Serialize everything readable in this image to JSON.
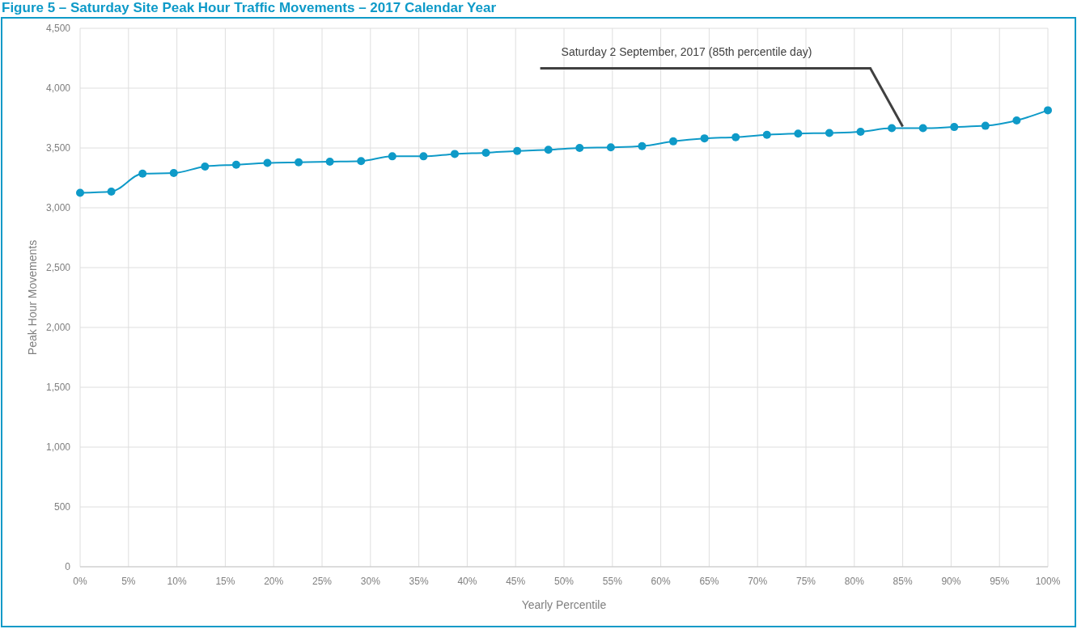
{
  "chart_data": {
    "type": "line",
    "title": "Figure 5 – Saturday Site Peak Hour Traffic Movements – 2017 Calendar Year",
    "xlabel": "Yearly Percentile",
    "ylabel": "Peak Hour Movements",
    "x": [
      0,
      3.226,
      6.452,
      9.677,
      12.903,
      16.129,
      19.355,
      22.581,
      25.806,
      29.032,
      32.258,
      35.484,
      38.71,
      41.935,
      45.161,
      48.387,
      51.613,
      54.839,
      58.065,
      61.29,
      64.516,
      67.742,
      70.968,
      74.194,
      77.419,
      80.645,
      83.871,
      87.097,
      90.323,
      93.548,
      96.774,
      100
    ],
    "series": [
      {
        "color": "#0e9ac8",
        "values": [
          3125,
          3135,
          3285,
          3290,
          3345,
          3360,
          3375,
          3380,
          3385,
          3390,
          3430,
          3430,
          3450,
          3460,
          3475,
          3485,
          3500,
          3505,
          3515,
          3555,
          3580,
          3590,
          3610,
          3620,
          3625,
          3635,
          3665,
          3665,
          3675,
          3685,
          3730,
          3815
        ]
      }
    ],
    "xlim": [
      0,
      100
    ],
    "xticks": [
      {
        "value": 0,
        "label": "0%"
      },
      {
        "value": 5,
        "label": "5%"
      },
      {
        "value": 10,
        "label": "10%"
      },
      {
        "value": 15,
        "label": "15%"
      },
      {
        "value": 20,
        "label": "20%"
      },
      {
        "value": 25,
        "label": "25%"
      },
      {
        "value": 30,
        "label": "30%"
      },
      {
        "value": 35,
        "label": "35%"
      },
      {
        "value": 40,
        "label": "40%"
      },
      {
        "value": 45,
        "label": "45%"
      },
      {
        "value": 50,
        "label": "50%"
      },
      {
        "value": 55,
        "label": "55%"
      },
      {
        "value": 60,
        "label": "60%"
      },
      {
        "value": 65,
        "label": "65%"
      },
      {
        "value": 70,
        "label": "70%"
      },
      {
        "value": 75,
        "label": "75%"
      },
      {
        "value": 80,
        "label": "80%"
      },
      {
        "value": 85,
        "label": "85%"
      },
      {
        "value": 90,
        "label": "90%"
      },
      {
        "value": 95,
        "label": "95%"
      },
      {
        "value": 100,
        "label": "100%"
      }
    ],
    "ylim": [
      0,
      4500
    ],
    "yticks": [
      {
        "value": 0,
        "label": "0"
      },
      {
        "value": 500,
        "label": "500"
      },
      {
        "value": 1000,
        "label": "1,000"
      },
      {
        "value": 1500,
        "label": "1,500"
      },
      {
        "value": 2000,
        "label": "2,000"
      },
      {
        "value": 2500,
        "label": "2,500"
      },
      {
        "value": 3000,
        "label": "3,000"
      },
      {
        "value": 3500,
        "label": "3,500"
      },
      {
        "value": 4000,
        "label": "4,000"
      },
      {
        "value": 4500,
        "label": "4,500"
      }
    ],
    "grid": true,
    "marker": "circle",
    "line_style": "solid",
    "annotations": [
      {
        "text": "Saturday 2 September, 2017 (85th percentile day)",
        "x": 85,
        "y": 3665
      }
    ]
  }
}
